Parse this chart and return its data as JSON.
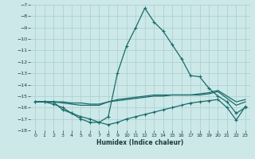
{
  "xlabel": "Humidex (Indice chaleur)",
  "background_color": "#cce8e8",
  "grid_color": "#aacece",
  "line_color": "#1a6b6b",
  "xlim": [
    -0.5,
    23.5
  ],
  "ylim": [
    -18,
    -7
  ],
  "x_ticks": [
    0,
    1,
    2,
    3,
    4,
    5,
    6,
    7,
    8,
    9,
    10,
    11,
    12,
    13,
    14,
    15,
    16,
    17,
    18,
    19,
    20,
    21,
    22,
    23
  ],
  "y_ticks": [
    -18,
    -17,
    -16,
    -15,
    -14,
    -13,
    -12,
    -11,
    -10,
    -9,
    -8,
    -7
  ],
  "series1_x": [
    0,
    1,
    2,
    3,
    4,
    5,
    6,
    7,
    8,
    9,
    10,
    11,
    12,
    13,
    14,
    15,
    16,
    17,
    18,
    19,
    20,
    21,
    22,
    23
  ],
  "series1_y": [
    -15.5,
    -15.5,
    -15.7,
    -16.0,
    -16.5,
    -17.0,
    -17.3,
    -17.3,
    -16.8,
    -13.0,
    -10.6,
    -9.0,
    -7.3,
    -8.5,
    -9.3,
    -10.5,
    -11.7,
    -13.2,
    -13.3,
    -14.3,
    -15.0,
    -15.5,
    -16.5,
    -16.0
  ],
  "series2_x": [
    0,
    1,
    2,
    3,
    4,
    5,
    6,
    7,
    8,
    9,
    10,
    11,
    12,
    13,
    14,
    15,
    16,
    17,
    18,
    19,
    20,
    21,
    22,
    23
  ],
  "series2_y": [
    -15.5,
    -15.5,
    -15.5,
    -16.2,
    -16.5,
    -16.8,
    -17.0,
    -17.3,
    -17.5,
    -17.3,
    -17.0,
    -16.8,
    -16.6,
    -16.4,
    -16.2,
    -16.0,
    -15.8,
    -15.6,
    -15.5,
    -15.4,
    -15.3,
    -16.0,
    -17.1,
    -15.9
  ],
  "series3_x": [
    0,
    1,
    2,
    3,
    4,
    5,
    6,
    7,
    8,
    9,
    10,
    11,
    12,
    13,
    14,
    15,
    16,
    17,
    18,
    19,
    20,
    21,
    22,
    23
  ],
  "series3_y": [
    -15.5,
    -15.5,
    -15.5,
    -15.6,
    -15.7,
    -15.8,
    -15.8,
    -15.8,
    -15.5,
    -15.3,
    -15.2,
    -15.1,
    -15.0,
    -14.9,
    -14.9,
    -14.9,
    -14.9,
    -14.9,
    -14.9,
    -14.8,
    -14.6,
    -15.2,
    -15.8,
    -15.5
  ],
  "series4_x": [
    0,
    1,
    2,
    3,
    4,
    5,
    6,
    7,
    8,
    9,
    10,
    11,
    12,
    13,
    14,
    15,
    16,
    17,
    18,
    19,
    20,
    21,
    22,
    23
  ],
  "series4_y": [
    -15.5,
    -15.5,
    -15.5,
    -15.5,
    -15.6,
    -15.6,
    -15.7,
    -15.7,
    -15.5,
    -15.4,
    -15.3,
    -15.2,
    -15.1,
    -15.0,
    -15.0,
    -14.9,
    -14.9,
    -14.9,
    -14.8,
    -14.7,
    -14.5,
    -15.0,
    -15.5,
    -15.3
  ]
}
